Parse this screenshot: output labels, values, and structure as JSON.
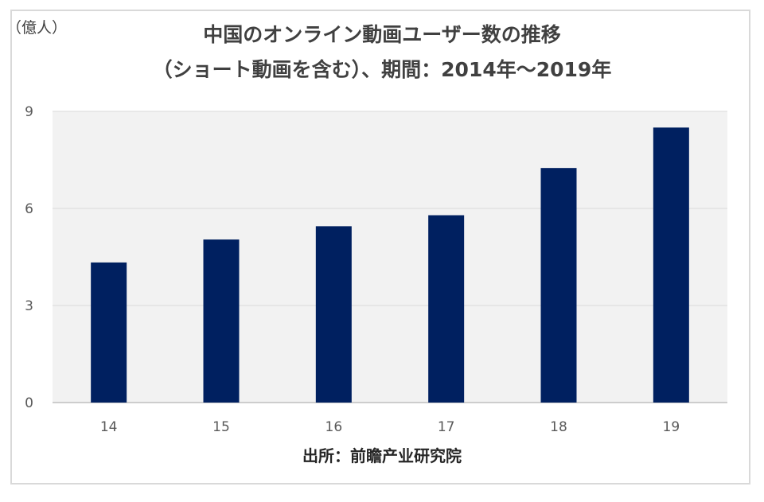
{
  "chart_data": {
    "type": "bar",
    "title": "中国のオンライン動画ユーザー数の推移",
    "subtitle": "（ショート動画を含む）、期間：2014年～2019年",
    "unit_label": "（億人）",
    "categories": [
      "14",
      "15",
      "16",
      "17",
      "18",
      "19"
    ],
    "values": [
      4.33,
      5.04,
      5.45,
      5.79,
      7.25,
      8.5
    ],
    "ylim": [
      0,
      9
    ],
    "yticks": [
      "0",
      "3",
      "6",
      "9"
    ],
    "grid": true,
    "legend": "none",
    "bar_color": "#002060",
    "plot_background": "#f2f2f2"
  },
  "source": "出所：前瞻产业研究院"
}
